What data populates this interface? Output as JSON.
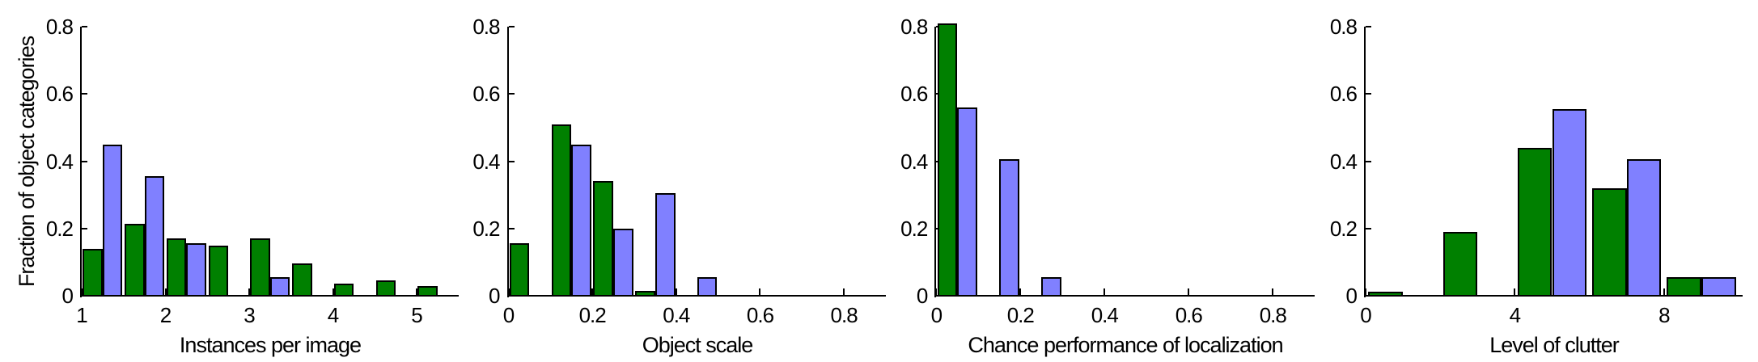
{
  "figure": {
    "background_color": "#ffffff",
    "axis_color": "#000000",
    "text_color": "#000000",
    "bar_outline_color": "#000000",
    "series_colors": {
      "green": "#008000",
      "blue": "#8080ff"
    },
    "shared_ylabel": "Fraction of object categories"
  },
  "chart_data": [
    {
      "type": "bar",
      "xlabel": "Instances per image",
      "ylabel": "Fraction of object categories",
      "xlim": [
        1,
        5.5
      ],
      "ylim": [
        0,
        0.8
      ],
      "xtick_values": [
        1,
        2,
        3,
        4,
        5
      ],
      "xtick_labels": [
        "1",
        "2",
        "3",
        "4",
        "5"
      ],
      "ytick_values": [
        0,
        0.2,
        0.4,
        0.6,
        0.8
      ],
      "ytick_labels": [
        "0",
        "0.2",
        "0.4",
        "0.6",
        "0.8"
      ],
      "grid": false,
      "legend": null,
      "group_centers": [
        1.25,
        1.75,
        2.25,
        2.75,
        3.25,
        3.75,
        4.25,
        4.75,
        5.25
      ],
      "bar_half_width": 0.2375,
      "series": [
        {
          "name": "green",
          "color": "#008000",
          "values": [
            0.14,
            0.215,
            0.17,
            0.15,
            0.17,
            0.095,
            0.035,
            0.045,
            0.03
          ]
        },
        {
          "name": "blue",
          "color": "#8080ff",
          "values": [
            0.45,
            0.355,
            0.155,
            0,
            0.055,
            0,
            0,
            0,
            0
          ]
        }
      ]
    },
    {
      "type": "bar",
      "xlabel": "Object scale",
      "ylabel": "",
      "xlim": [
        0,
        0.9
      ],
      "ylim": [
        0,
        0.8
      ],
      "xtick_values": [
        0,
        0.2,
        0.4,
        0.6,
        0.8
      ],
      "xtick_labels": [
        "0",
        "0.2",
        "0.4",
        "0.6",
        "0.8"
      ],
      "ytick_values": [
        0,
        0.2,
        0.4,
        0.6,
        0.8
      ],
      "ytick_labels": [
        "0",
        "0.2",
        "0.4",
        "0.6",
        "0.8"
      ],
      "grid": false,
      "legend": null,
      "group_centers": [
        0.05,
        0.15,
        0.25,
        0.35,
        0.45
      ],
      "bar_half_width": 0.0475,
      "series": [
        {
          "name": "green",
          "color": "#008000",
          "values": [
            0.155,
            0.51,
            0.34,
            0.015,
            0
          ]
        },
        {
          "name": "blue",
          "color": "#8080ff",
          "values": [
            0,
            0.45,
            0.2,
            0.305,
            0.055
          ]
        }
      ]
    },
    {
      "type": "bar",
      "xlabel": "Chance performance of localization",
      "ylabel": "",
      "xlim": [
        0,
        0.9
      ],
      "ylim": [
        0,
        0.8
      ],
      "xtick_values": [
        0,
        0.2,
        0.4,
        0.6,
        0.8
      ],
      "xtick_labels": [
        "0",
        "0.2",
        "0.4",
        "0.6",
        "0.8"
      ],
      "ytick_values": [
        0,
        0.2,
        0.4,
        0.6,
        0.8
      ],
      "ytick_labels": [
        "0",
        "0.2",
        "0.4",
        "0.6",
        "0.8"
      ],
      "grid": false,
      "legend": null,
      "group_centers": [
        0.05,
        0.15,
        0.25
      ],
      "bar_half_width": 0.0475,
      "series": [
        {
          "name": "green",
          "color": "#008000",
          "values": [
            0.81,
            0,
            0
          ]
        },
        {
          "name": "blue",
          "color": "#8080ff",
          "values": [
            0.56,
            0.405,
            0.055
          ]
        }
      ]
    },
    {
      "type": "bar",
      "xlabel": "Level of clutter",
      "ylabel": "",
      "xlim": [
        0,
        10.1
      ],
      "ylim": [
        0,
        0.8
      ],
      "xtick_values": [
        0,
        4,
        8
      ],
      "xtick_labels": [
        "0",
        "4",
        "8"
      ],
      "ytick_values": [
        0,
        0.2,
        0.4,
        0.6,
        0.8
      ],
      "ytick_labels": [
        "0",
        "0.2",
        "0.4",
        "0.6",
        "0.8"
      ],
      "grid": false,
      "legend": null,
      "group_centers": [
        1,
        3,
        5,
        7,
        9
      ],
      "bar_half_width": 0.925,
      "series": [
        {
          "name": "green",
          "color": "#008000",
          "values": [
            0.012,
            0.19,
            0.44,
            0.32,
            0.055
          ]
        },
        {
          "name": "blue",
          "color": "#8080ff",
          "values": [
            0,
            0,
            0.555,
            0.405,
            0.055
          ]
        }
      ]
    }
  ]
}
